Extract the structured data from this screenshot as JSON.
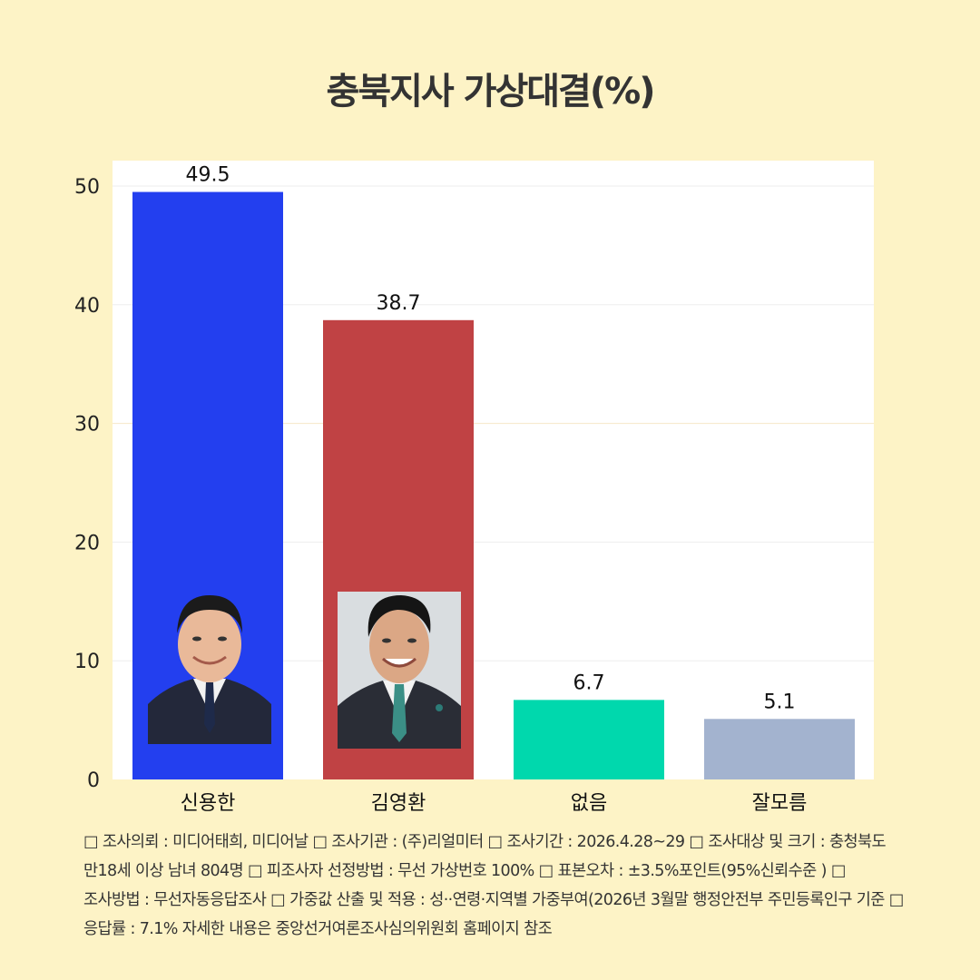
{
  "title": "충북지사 가상대결(%)",
  "chart_data": {
    "type": "bar",
    "categories": [
      "신용한",
      "김영환",
      "없음",
      "잘모름"
    ],
    "values": [
      49.5,
      38.7,
      6.7,
      5.1
    ],
    "value_labels": [
      "49.5",
      "38.7",
      "6.7",
      "5.1"
    ],
    "colors": [
      "#233fef",
      "#c04244",
      "#00d8ad",
      "#a3b3cf"
    ],
    "ylim": [
      0,
      52
    ],
    "yticks": [
      0,
      10,
      20,
      30,
      40,
      50
    ],
    "grid": true,
    "xlabel": "",
    "ylabel": ""
  },
  "candidates": [
    {
      "name": "신용한",
      "photo_icon": "candidate-portrait-icon"
    },
    {
      "name": "김영환",
      "photo_icon": "candidate-portrait-icon"
    }
  ],
  "footnote": "□ 조사의뢰 : 미디어태희, 미디어날 □ 조사기관 : (주)리얼미터 □ 조사기간 : 2026.4.28~29 □ 조사대상 및 크기 : 충청북도 만18세 이상 남녀 804명 □ 피조사자 선정방법 : 무선 가상번호 100% □ 표본오차 : ±3.5%포인트(95%신뢰수준 ) □ 조사방법 : 무선자동응답조사 □ 가중값 산출 및 적용 : 성··연령·지역별 가중부여(2026년 3월말 행정안전부 주민등록인구 기준 □ 응답률 : 7.1% 자세한 내용은 중앙선거여론조사심의위원회 홈페이지 참조"
}
